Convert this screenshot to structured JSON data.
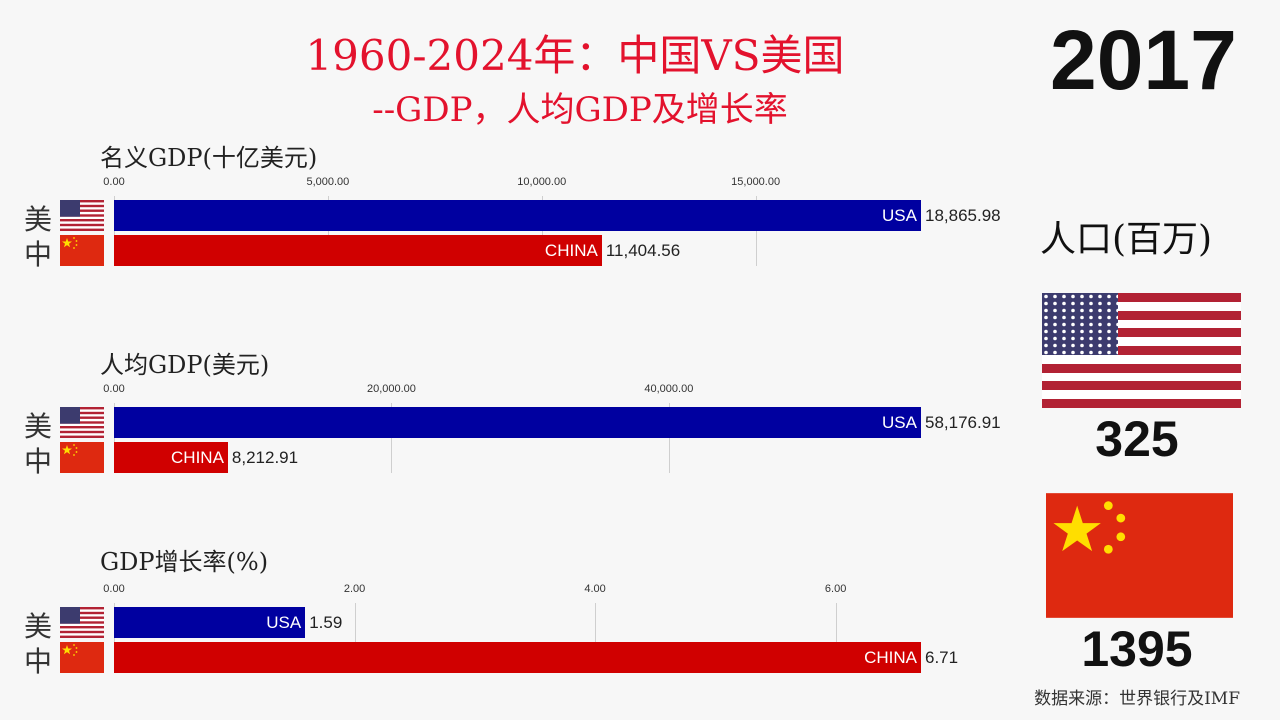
{
  "header": {
    "title_line1": "1960-2024年：中国VS美国",
    "title_line2": "--GDP，人均GDP及增长率",
    "year": "2017"
  },
  "colors": {
    "usa": "#0000a0",
    "china": "#d00000",
    "title": "#e3122d"
  },
  "country_labels": {
    "usa_short": "美",
    "china_short": "中",
    "usa": "USA",
    "china": "CHINA"
  },
  "chart_data": [
    {
      "type": "bar",
      "title": "名义GDP(十亿美元)",
      "categories": [
        "USA",
        "CHINA"
      ],
      "values": [
        18865.98,
        11404.56
      ],
      "value_labels": [
        "18,865.98",
        "11,404.56"
      ],
      "ticks": [
        0,
        5000,
        10000,
        15000
      ],
      "tick_labels": [
        "0.00",
        "5,000.00",
        "10,000.00",
        "15,000.00"
      ],
      "xlim": [
        0,
        18865.98
      ]
    },
    {
      "type": "bar",
      "title": "人均GDP(美元)",
      "categories": [
        "USA",
        "CHINA"
      ],
      "values": [
        58176.91,
        8212.91
      ],
      "value_labels": [
        "58,176.91",
        "8,212.91"
      ],
      "ticks": [
        0,
        20000,
        40000
      ],
      "tick_labels": [
        "0.00",
        "20,000.00",
        "40,000.00"
      ],
      "xlim": [
        0,
        58176.91
      ]
    },
    {
      "type": "bar",
      "title": "GDP增长率(%)",
      "categories": [
        "USA",
        "CHINA"
      ],
      "values": [
        1.59,
        6.71
      ],
      "value_labels": [
        "1.59",
        "6.71"
      ],
      "ticks": [
        0,
        2,
        4,
        6
      ],
      "tick_labels": [
        "0.00",
        "2.00",
        "4.00",
        "6.00"
      ],
      "xlim": [
        0,
        6.71
      ]
    }
  ],
  "population": {
    "label": "人口(百万)",
    "usa": "325",
    "china": "1395"
  },
  "source": "数据来源：世界银行及IMF"
}
